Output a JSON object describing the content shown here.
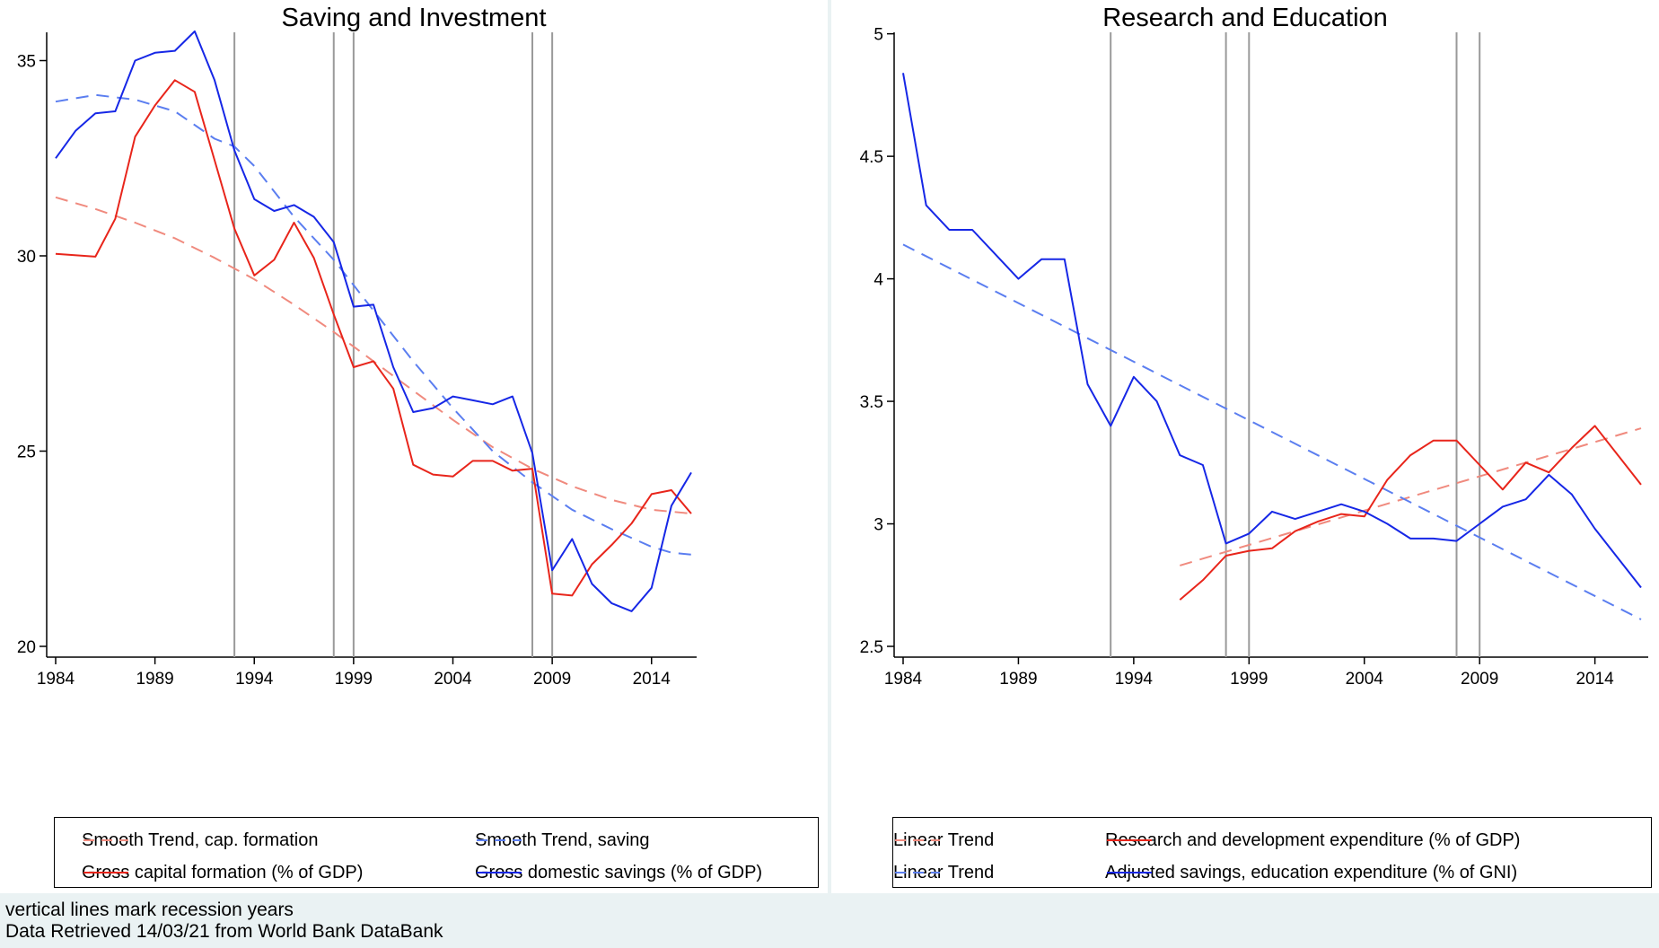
{
  "footer": {
    "line1": "vertical lines mark recession years",
    "line2": "Data Retrieved 14/03/21 from World Bank DataBank"
  },
  "colors": {
    "red": "#e8251b",
    "blue": "#1627e6",
    "red_trend": "#f08a7e",
    "blue_trend": "#5b7ef0",
    "recession": "#9a9a9a"
  },
  "chart_data": [
    {
      "type": "line",
      "title": "Saving and Investment",
      "xlabel": "",
      "ylabel": "",
      "xlim": [
        1984,
        2016
      ],
      "ylim": [
        20,
        36
      ],
      "xticks": [
        1984,
        1989,
        1994,
        1999,
        2004,
        2009,
        2014
      ],
      "yticks": [
        20,
        25,
        30,
        35
      ],
      "recession_years": [
        1993,
        1998,
        1999,
        2008,
        2009
      ],
      "legend_placement": "bottom",
      "series": [
        {
          "name": "Smooth Trend, cap. formation",
          "style": "dashed",
          "color": "red_trend",
          "x": [
            1984,
            1986,
            1988,
            1990,
            1992,
            1994,
            1996,
            1998,
            2000,
            2002,
            2004,
            2006,
            2008,
            2010,
            2012,
            2014,
            2016
          ],
          "y": [
            31.5,
            31.2,
            30.85,
            30.45,
            29.95,
            29.4,
            28.75,
            28.05,
            27.3,
            26.55,
            25.8,
            25.1,
            24.55,
            24.1,
            23.75,
            23.5,
            23.4
          ]
        },
        {
          "name": "Smooth Trend, saving",
          "style": "dashed",
          "color": "blue_trend",
          "x": [
            1984,
            1986,
            1988,
            1990,
            1992,
            1993,
            1994,
            1996,
            1998,
            2000,
            2002,
            2004,
            2006,
            2008,
            2010,
            2012,
            2014,
            2015,
            2016
          ],
          "y": [
            33.95,
            34.12,
            34.0,
            33.7,
            33.0,
            32.8,
            32.3,
            31.0,
            29.9,
            28.6,
            27.3,
            26.1,
            25.0,
            24.2,
            23.5,
            23.0,
            22.55,
            22.4,
            22.35
          ]
        },
        {
          "name": "Gross capital formation (% of GDP)",
          "style": "solid",
          "color": "red",
          "x": [
            1984,
            1986,
            1987,
            1988,
            1989,
            1990,
            1991,
            1992,
            1993,
            1994,
            1995,
            1996,
            1997,
            1998,
            1999,
            2000,
            2001,
            2002,
            2003,
            2004,
            2005,
            2006,
            2007,
            2008,
            2009,
            2010,
            2011,
            2012,
            2013,
            2014,
            2015,
            2016
          ],
          "y": [
            30.05,
            29.98,
            30.95,
            33.05,
            33.85,
            34.5,
            34.2,
            32.45,
            30.7,
            29.5,
            29.9,
            30.85,
            29.95,
            28.5,
            27.15,
            27.3,
            26.6,
            24.65,
            24.4,
            24.35,
            24.75,
            24.75,
            24.5,
            24.55,
            21.35,
            21.3,
            22.1,
            22.6,
            23.15,
            23.9,
            24.0,
            23.4
          ]
        },
        {
          "name": "Gross domestic savings (% of GDP)",
          "style": "solid",
          "color": "blue",
          "x": [
            1984,
            1985,
            1986,
            1987,
            1988,
            1989,
            1990,
            1991,
            1992,
            1993,
            1994,
            1995,
            1996,
            1997,
            1998,
            1999,
            2000,
            2001,
            2002,
            2003,
            2004,
            2005,
            2006,
            2007,
            2008,
            2009,
            2010,
            2011,
            2012,
            2013,
            2014,
            2015,
            2016
          ],
          "y": [
            32.5,
            33.2,
            33.65,
            33.7,
            35.0,
            35.2,
            35.25,
            35.75,
            34.5,
            32.7,
            31.45,
            31.15,
            31.3,
            31.0,
            30.35,
            28.7,
            28.75,
            27.15,
            26.0,
            26.1,
            26.4,
            26.3,
            26.2,
            26.4,
            24.95,
            21.95,
            22.75,
            21.6,
            21.1,
            20.9,
            21.5,
            23.6,
            24.45
          ]
        }
      ]
    },
    {
      "type": "line",
      "title": "Research and Education",
      "xlabel": "",
      "ylabel": "",
      "xlim": [
        1984,
        2016
      ],
      "ylim": [
        2.5,
        5.05
      ],
      "xticks": [
        1984,
        1989,
        1994,
        1999,
        2004,
        2009,
        2014
      ],
      "yticks": [
        2.5,
        3,
        3.5,
        4,
        4.5,
        5
      ],
      "ytick_labels": [
        "2.5",
        "3",
        "3.5",
        "4",
        "4.5",
        "5"
      ],
      "recession_years": [
        1993,
        1998,
        1999,
        2008,
        2009
      ],
      "legend_placement": "bottom",
      "series": [
        {
          "name": "Linear Trend",
          "style": "dashed",
          "color": "red_trend",
          "x": [
            1996,
            2016
          ],
          "y": [
            2.83,
            3.39
          ]
        },
        {
          "name": "Linear Trend",
          "style": "dashed",
          "color": "blue_trend",
          "x": [
            1984,
            2016
          ],
          "y": [
            4.14,
            2.61
          ]
        },
        {
          "name": "Research and development expenditure (% of GDP)",
          "style": "solid",
          "color": "red",
          "x": [
            1996,
            1997,
            1998,
            1999,
            2000,
            2001,
            2002,
            2003,
            2004,
            2005,
            2006,
            2007,
            2008,
            2009,
            2010,
            2011,
            2012,
            2013,
            2014,
            2015,
            2016
          ],
          "y": [
            2.69,
            2.77,
            2.87,
            2.89,
            2.9,
            2.97,
            3.01,
            3.04,
            3.03,
            3.18,
            3.28,
            3.34,
            3.34,
            3.24,
            3.14,
            3.25,
            3.21,
            3.31,
            3.4,
            3.28,
            3.16
          ]
        },
        {
          "name": "Adjusted savings, education expenditure (% of GNI)",
          "style": "solid",
          "color": "blue",
          "x": [
            1984,
            1985,
            1986,
            1987,
            1988,
            1989,
            1990,
            1991,
            1992,
            1993,
            1994,
            1995,
            1996,
            1997,
            1998,
            1999,
            2000,
            2001,
            2002,
            2003,
            2004,
            2005,
            2006,
            2007,
            2008,
            2009,
            2010,
            2011,
            2012,
            2013,
            2014,
            2015,
            2016
          ],
          "y": [
            4.84,
            4.3,
            4.2,
            4.2,
            4.1,
            4.0,
            4.08,
            4.08,
            3.57,
            3.4,
            3.6,
            3.5,
            3.28,
            3.24,
            2.92,
            2.96,
            3.05,
            3.02,
            3.05,
            3.08,
            3.05,
            3.0,
            2.94,
            2.94,
            2.93,
            3.0,
            3.07,
            3.1,
            3.2,
            3.12,
            2.98,
            2.86,
            2.74
          ]
        }
      ]
    }
  ],
  "legends": [
    {
      "items": [
        {
          "label": "Smooth Trend, cap. formation",
          "color": "red_trend",
          "style": "dashed"
        },
        {
          "label": "Smooth Trend, saving",
          "color": "blue_trend",
          "style": "dashed"
        },
        {
          "label": "Gross capital formation (% of GDP)",
          "color": "red",
          "style": "solid"
        },
        {
          "label": "Gross domestic savings (% of GDP)",
          "color": "blue",
          "style": "solid"
        }
      ]
    },
    {
      "items": [
        {
          "label": "Linear Trend",
          "color": "red_trend",
          "style": "dashed"
        },
        {
          "label": "Research and development expenditure (% of GDP)",
          "color": "red",
          "style": "solid"
        },
        {
          "label": "Linear Trend",
          "color": "blue_trend",
          "style": "dashed"
        },
        {
          "label": "Adjusted savings, education expenditure (% of GNI)",
          "color": "blue",
          "style": "solid"
        }
      ]
    }
  ]
}
